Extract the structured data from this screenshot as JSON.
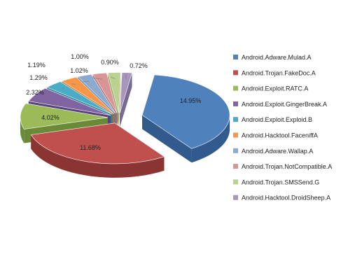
{
  "chart_data": {
    "type": "pie",
    "title": "",
    "legend_position": "right",
    "grid": false,
    "style": "3d-exploded",
    "categories": [
      "Android.Adware.Mulad.A",
      "Android.Trojan.FakeDoc.A",
      "Android.Exploit.RATC.A",
      "Android.Exploit.GingerBreak.A",
      "Android.Exploit.Exploid.B",
      "Android.Hacktool.FaceniffA",
      "Android.Adware.Wallap.A",
      "Android.Trojan.NotCompatible.A",
      "Android.Trojan.SMSSend.G",
      "Android.Hacktool.DroidSheep.A"
    ],
    "values": [
      14.95,
      11.68,
      4.02,
      2.32,
      1.29,
      1.19,
      1.02,
      1.0,
      0.9,
      0.72
    ],
    "data_labels": [
      "14.95%",
      "11.68%",
      "4.02%",
      "2.32%",
      "1.29%",
      "1.19%",
      "1.02%",
      "1.00%",
      "0.90%",
      "0.72%"
    ],
    "colors": [
      "#4f81bd",
      "#c0504d",
      "#9bbb59",
      "#8064a2",
      "#4bacc6",
      "#f79646",
      "#8aaad0",
      "#d89593",
      "#bcd18e",
      "#a896bd"
    ],
    "side_colors": [
      "#335a8c",
      "#8a3533",
      "#6b8a38",
      "#57447a",
      "#2f7f96",
      "#b8692c",
      "#5f7ea6",
      "#a86664",
      "#8ea062",
      "#7a6a92"
    ]
  }
}
